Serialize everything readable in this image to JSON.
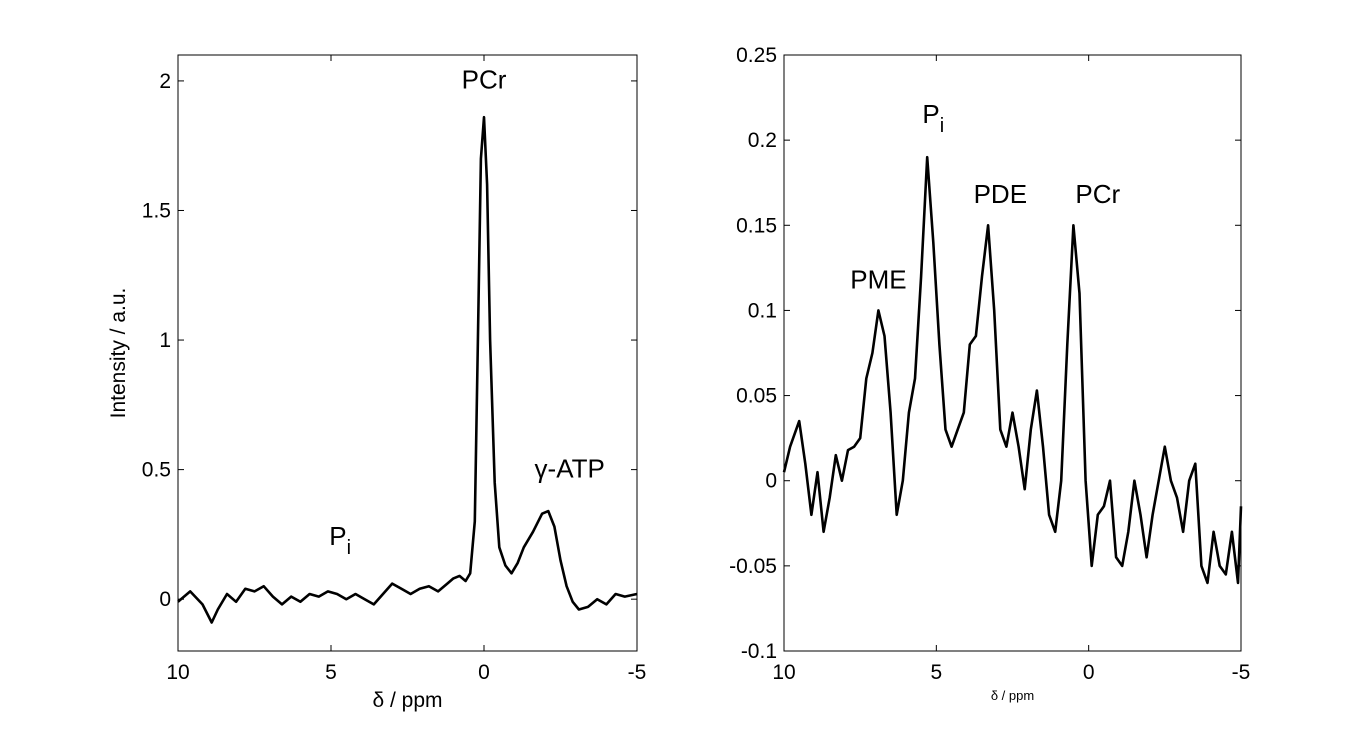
{
  "chart_data": [
    {
      "type": "line",
      "xlabel": "δ / ppm",
      "ylabel": "Intensity / a.u.",
      "xlim": [
        10,
        -5
      ],
      "ylim": [
        -0.2,
        2.1
      ],
      "x_reversed": true,
      "x_ticks": [
        10,
        5,
        0,
        -5
      ],
      "x_tick_labels": [
        "10",
        "5",
        "0",
        "-5"
      ],
      "y_ticks": [
        0,
        0.5,
        1,
        1.5,
        2
      ],
      "y_tick_labels": [
        "0",
        "0.5",
        "1",
        "1.5",
        "2"
      ],
      "grid": false,
      "line_color": "#000000",
      "annotations": [
        {
          "text": "PCr",
          "sub": "",
          "x": 0,
          "y": 1.97
        },
        {
          "text": "γ-ATP",
          "sub": "",
          "x": -2.8,
          "y": 0.47
        },
        {
          "text": "P",
          "sub": "i",
          "x": 4.7,
          "y": 0.21
        }
      ],
      "series": [
        {
          "x": [
            10,
            9.6,
            9.2,
            8.9,
            8.7,
            8.4,
            8.1,
            7.8,
            7.5,
            7.2,
            6.9,
            6.6,
            6.3,
            6.0,
            5.7,
            5.4,
            5.1,
            4.8,
            4.5,
            4.2,
            3.9,
            3.6,
            3.3,
            3.0,
            2.7,
            2.4,
            2.1,
            1.8,
            1.5,
            1.2,
            1.0,
            0.8,
            0.6,
            0.45,
            0.3,
            0.2,
            0.1,
            0.0,
            -0.1,
            -0.2,
            -0.35,
            -0.5,
            -0.7,
            -0.9,
            -1.1,
            -1.3,
            -1.6,
            -1.9,
            -2.1,
            -2.3,
            -2.5,
            -2.7,
            -2.9,
            -3.1,
            -3.4,
            -3.7,
            -4.0,
            -4.3,
            -4.6,
            -5.0
          ],
          "y": [
            -0.01,
            0.03,
            -0.02,
            -0.09,
            -0.04,
            0.02,
            -0.01,
            0.04,
            0.03,
            0.05,
            0.01,
            -0.02,
            0.01,
            -0.01,
            0.02,
            0.01,
            0.03,
            0.02,
            0.0,
            0.02,
            0.0,
            -0.02,
            0.02,
            0.06,
            0.04,
            0.02,
            0.04,
            0.05,
            0.03,
            0.06,
            0.08,
            0.09,
            0.07,
            0.1,
            0.3,
            1.0,
            1.7,
            1.86,
            1.6,
            1.0,
            0.45,
            0.2,
            0.13,
            0.1,
            0.14,
            0.2,
            0.26,
            0.33,
            0.34,
            0.28,
            0.15,
            0.05,
            -0.01,
            -0.04,
            -0.03,
            0.0,
            -0.02,
            0.02,
            0.01,
            0.02
          ]
        }
      ]
    },
    {
      "type": "line",
      "xlabel": "δ / ppm",
      "ylabel": "",
      "xlim": [
        10,
        -5
      ],
      "ylim": [
        -0.1,
        0.25
      ],
      "x_reversed": true,
      "x_ticks": [
        10,
        5,
        0,
        -5
      ],
      "x_tick_labels": [
        "10",
        "5",
        "0",
        "-5"
      ],
      "y_ticks": [
        -0.1,
        -0.05,
        0,
        0.05,
        0.1,
        0.15,
        0.2,
        0.25
      ],
      "y_tick_labels": [
        "-0.1",
        "-0.05",
        "0",
        "0.05",
        "0.1",
        "0.15",
        "0.2",
        "0.25"
      ],
      "grid": false,
      "line_color": "#000000",
      "annotations": [
        {
          "text": "PME",
          "sub": "",
          "x": 6.9,
          "y": 0.113
        },
        {
          "text": "P",
          "sub": "i",
          "x": 5.1,
          "y": 0.21
        },
        {
          "text": "PDE",
          "sub": "",
          "x": 2.9,
          "y": 0.163
        },
        {
          "text": "PCr",
          "sub": "",
          "x": -0.3,
          "y": 0.163
        }
      ],
      "series": [
        {
          "x": [
            10,
            9.8,
            9.5,
            9.3,
            9.1,
            8.9,
            8.7,
            8.5,
            8.3,
            8.1,
            7.9,
            7.7,
            7.5,
            7.3,
            7.1,
            6.9,
            6.7,
            6.5,
            6.3,
            6.1,
            5.9,
            5.7,
            5.5,
            5.3,
            5.1,
            4.9,
            4.7,
            4.5,
            4.3,
            4.1,
            3.9,
            3.7,
            3.5,
            3.3,
            3.1,
            2.9,
            2.7,
            2.5,
            2.3,
            2.1,
            1.9,
            1.7,
            1.5,
            1.3,
            1.1,
            0.9,
            0.7,
            0.5,
            0.3,
            0.1,
            -0.1,
            -0.3,
            -0.5,
            -0.7,
            -0.9,
            -1.1,
            -1.3,
            -1.5,
            -1.7,
            -1.9,
            -2.1,
            -2.3,
            -2.5,
            -2.7,
            -2.9,
            -3.1,
            -3.3,
            -3.5,
            -3.7,
            -3.9,
            -4.1,
            -4.3,
            -4.5,
            -4.7,
            -4.9,
            -5.0
          ],
          "y": [
            0.005,
            0.02,
            0.035,
            0.01,
            -0.02,
            0.005,
            -0.03,
            -0.01,
            0.015,
            0.0,
            0.018,
            0.02,
            0.025,
            0.06,
            0.075,
            0.1,
            0.085,
            0.04,
            -0.02,
            0.0,
            0.04,
            0.06,
            0.12,
            0.19,
            0.14,
            0.08,
            0.03,
            0.02,
            0.03,
            0.04,
            0.08,
            0.085,
            0.12,
            0.15,
            0.1,
            0.03,
            0.02,
            0.04,
            0.02,
            -0.005,
            0.03,
            0.053,
            0.02,
            -0.02,
            -0.03,
            0.0,
            0.08,
            0.15,
            0.11,
            0.0,
            -0.05,
            -0.02,
            -0.015,
            0.0,
            -0.045,
            -0.05,
            -0.03,
            0.0,
            -0.02,
            -0.045,
            -0.02,
            0.0,
            0.02,
            0.0,
            -0.01,
            -0.03,
            0.0,
            0.01,
            -0.05,
            -0.06,
            -0.03,
            -0.05,
            -0.055,
            -0.03,
            -0.06,
            -0.015
          ]
        }
      ]
    }
  ]
}
